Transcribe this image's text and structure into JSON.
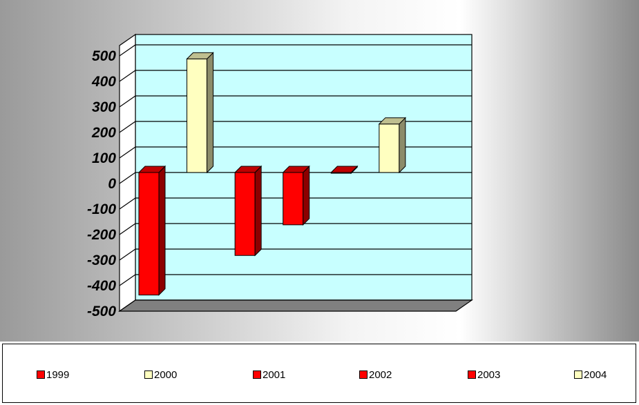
{
  "colors": {
    "negative_bar": "#ff0000",
    "positive_bar": "#ffffc0",
    "plot_background": "#c8ffff",
    "floor": "#808080"
  },
  "chart_data": {
    "type": "bar",
    "title": "",
    "xlabel": "",
    "ylabel": "",
    "ylim": [
      -500,
      500
    ],
    "yticks": [
      "500",
      "400",
      "300",
      "200",
      "100",
      "0",
      "-100",
      "-200",
      "-300",
      "-400",
      "-500"
    ],
    "grid": true,
    "legend_position": "bottom",
    "series": [
      {
        "name": "1999",
        "value": -480,
        "color": "#ff0000"
      },
      {
        "name": "2000",
        "value": 445,
        "color": "#ffffc0"
      },
      {
        "name": "2001",
        "value": -325,
        "color": "#ff0000"
      },
      {
        "name": "2002",
        "value": -205,
        "color": "#ff0000"
      },
      {
        "name": "2003",
        "value": -3,
        "color": "#ff0000"
      },
      {
        "name": "2004",
        "value": 190,
        "color": "#ffffc0"
      }
    ]
  }
}
